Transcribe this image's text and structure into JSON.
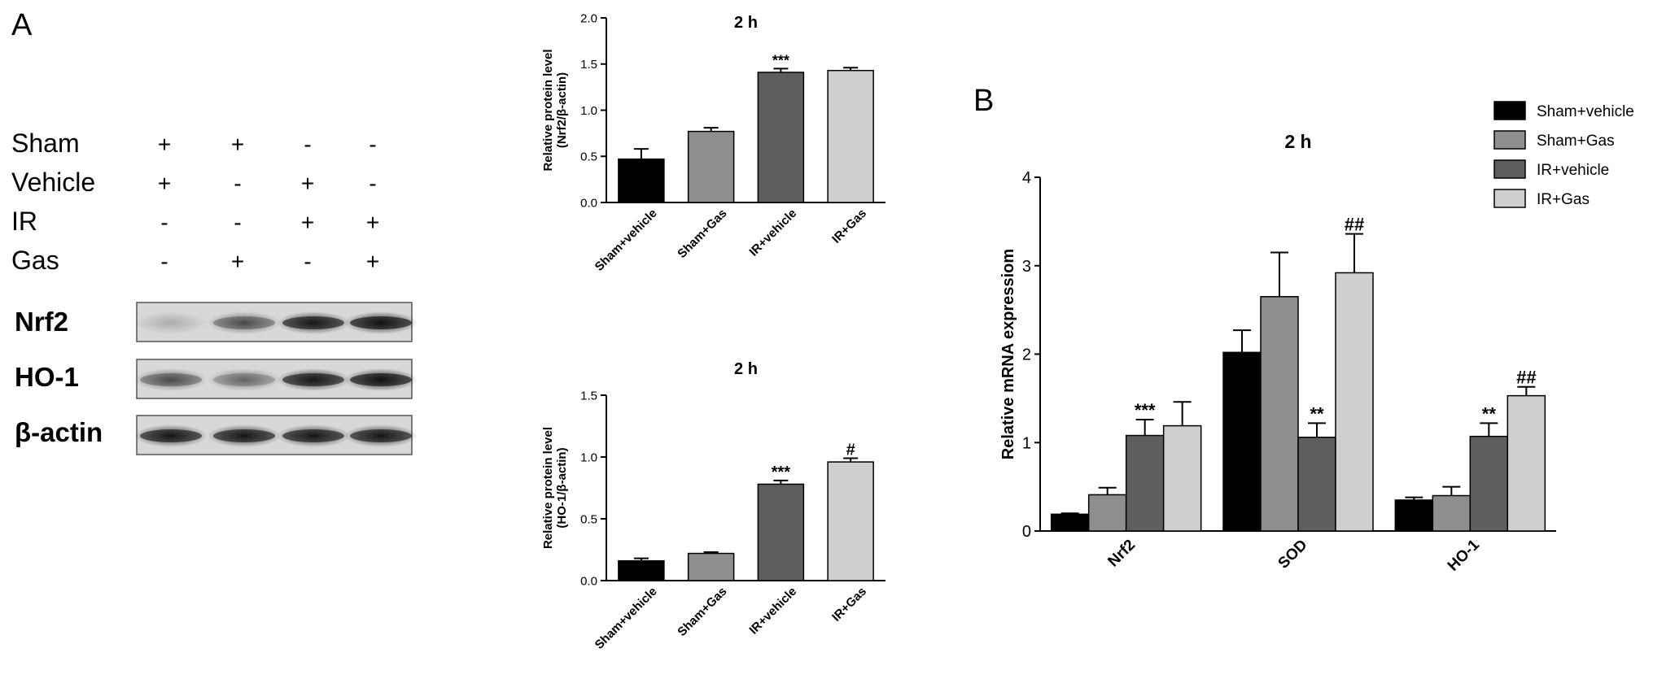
{
  "panel_a": {
    "letter": "A",
    "treatments": [
      {
        "label": "Sham",
        "signs": [
          "+",
          "+",
          "-",
          "-"
        ]
      },
      {
        "label": "Vehicle",
        "signs": [
          "+",
          "-",
          "+",
          "-"
        ]
      },
      {
        "label": "IR",
        "signs": [
          "-",
          "-",
          "+",
          "+"
        ]
      },
      {
        "label": "Gas",
        "signs": [
          "-",
          "+",
          "-",
          "+"
        ]
      }
    ],
    "bands": [
      {
        "label": "Nrf2",
        "intensity": [
          0.2,
          0.55,
          0.85,
          0.9
        ]
      },
      {
        "label": "HO-1",
        "intensity": [
          0.55,
          0.45,
          0.85,
          0.9
        ]
      },
      {
        "label": "β-actin",
        "intensity": [
          0.85,
          0.85,
          0.85,
          0.85
        ]
      }
    ]
  },
  "panel_b": {
    "letter": "B"
  },
  "colors": {
    "Sham+vehicle": "#000000",
    "Sham+Gas": "#8e8e8e",
    "IR+vehicle": "#5e5e5e",
    "IR+Gas": "#cfcfcf"
  },
  "chart_data": [
    {
      "type": "bar",
      "title": "2 h",
      "ylabel": "Relative protein level",
      "ylabel2": "(Nrf2/β-actin)",
      "categories": [
        "Sham+vehicle",
        "Sham+Gas",
        "IR+vehicle",
        "IR+Gas"
      ],
      "values": [
        0.47,
        0.77,
        1.41,
        1.43
      ],
      "errors": [
        0.11,
        0.04,
        0.04,
        0.03
      ],
      "annotations": [
        "",
        "",
        "***",
        ""
      ],
      "ylim": [
        0,
        2.0
      ],
      "yticks": [
        "0.0",
        "0.5",
        "1.0",
        "1.5",
        "2.0"
      ]
    },
    {
      "type": "bar",
      "title": "2 h",
      "ylabel": "Relative protein level",
      "ylabel2": "(HO-1/β-actin)",
      "categories": [
        "Sham+vehicle",
        "Sham+Gas",
        "IR+vehicle",
        "IR+Gas"
      ],
      "values": [
        0.16,
        0.22,
        0.78,
        0.96
      ],
      "errors": [
        0.02,
        0.01,
        0.03,
        0.03
      ],
      "annotations": [
        "",
        "",
        "***",
        "#"
      ],
      "ylim": [
        0,
        1.5
      ],
      "yticks": [
        "0.0",
        "0.5",
        "1.0",
        "1.5"
      ]
    },
    {
      "type": "bar",
      "title": "2 h",
      "ylabel": "Relative mRNA expressiom",
      "categories": [
        "Nrf2",
        "SOD",
        "HO-1"
      ],
      "series": [
        {
          "name": "Sham+vehicle",
          "values": [
            0.19,
            2.02,
            0.35
          ],
          "errors": [
            0.01,
            0.25,
            0.03
          ],
          "annotations": [
            "",
            "",
            ""
          ]
        },
        {
          "name": "Sham+Gas",
          "values": [
            0.41,
            2.65,
            0.4
          ],
          "errors": [
            0.08,
            0.5,
            0.1
          ],
          "annotations": [
            "",
            "",
            ""
          ]
        },
        {
          "name": "IR+vehicle",
          "values": [
            1.08,
            1.06,
            1.07
          ],
          "errors": [
            0.18,
            0.16,
            0.15
          ],
          "annotations": [
            "***",
            "**",
            "**"
          ]
        },
        {
          "name": "IR+Gas",
          "values": [
            1.19,
            2.92,
            1.53
          ],
          "errors": [
            0.27,
            0.44,
            0.1
          ],
          "annotations": [
            "",
            "##",
            "##"
          ]
        }
      ],
      "ylim": [
        0,
        4
      ],
      "yticks": [
        "0",
        "1",
        "2",
        "3",
        "4"
      ],
      "legend": "top-right"
    }
  ]
}
